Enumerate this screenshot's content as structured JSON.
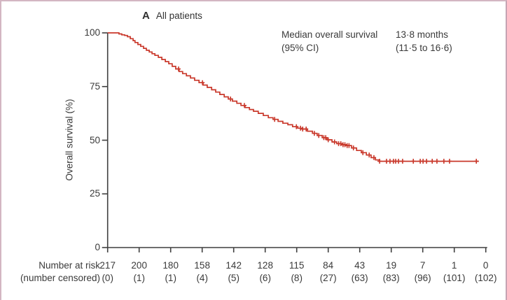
{
  "figure": {
    "panel_label": "A",
    "panel_title": "All patients",
    "annotation": {
      "label_line1": "Median overall survival",
      "label_line2": "(95% CI)",
      "value_line1": "13·8 months",
      "value_line2": "(11·5 to 16·6)"
    },
    "risk_table": {
      "row1_label": "Number at risk",
      "row2_label": "(number censored)",
      "number_at_risk": [
        "217",
        "200",
        "180",
        "158",
        "142",
        "128",
        "115",
        "84",
        "43",
        "19",
        "7",
        "1",
        "0"
      ],
      "number_censored": [
        "(0)",
        "(1)",
        "(1)",
        "(4)",
        "(5)",
        "(6)",
        "(8)",
        "(27)",
        "(63)",
        "(83)",
        "(96)",
        "(101)",
        "(102)"
      ]
    },
    "colors": {
      "curve_red": "#c9382b",
      "axis_gray": "#3f3f3f",
      "text_gray": "#3a3a3a",
      "frame_pink": "#d3b6c2"
    }
  },
  "chart_data": {
    "type": "line",
    "subtype": "kaplan-meier-survival",
    "title": "A All patients",
    "ylabel": "Overall survival (%)",
    "ylim": [
      0,
      100
    ],
    "yticks": [
      0,
      25,
      50,
      75,
      100
    ],
    "x_axis": {
      "tick_count": 13,
      "xlim_units": [
        0,
        12
      ],
      "tick_labels_visible": false
    },
    "legend_position": "none",
    "grid": false,
    "median_overall_survival": "13·8 months",
    "ci_95": "11·5 to 16·6",
    "number_at_risk": [
      217,
      200,
      180,
      158,
      142,
      128,
      115,
      84,
      43,
      19,
      7,
      1,
      0
    ],
    "number_censored": [
      0,
      1,
      1,
      4,
      5,
      6,
      8,
      27,
      63,
      83,
      96,
      101,
      102
    ],
    "curve_points": [
      [
        0,
        100
      ],
      [
        0.32,
        100
      ],
      [
        0.36,
        99.5
      ],
      [
        0.45,
        99.1
      ],
      [
        0.54,
        98.8
      ],
      [
        0.63,
        98.2
      ],
      [
        0.72,
        97.3
      ],
      [
        0.81,
        96.4
      ],
      [
        0.87,
        95.5
      ],
      [
        0.96,
        94.6
      ],
      [
        1.05,
        93.7
      ],
      [
        1.14,
        92.8
      ],
      [
        1.23,
        91.9
      ],
      [
        1.32,
        91.1
      ],
      [
        1.41,
        90.3
      ],
      [
        1.5,
        89.5
      ],
      [
        1.61,
        88.6
      ],
      [
        1.72,
        87.6
      ],
      [
        1.83,
        86.6
      ],
      [
        1.94,
        85.6
      ],
      [
        2.05,
        84.4
      ],
      [
        2.16,
        83.2
      ],
      [
        2.27,
        82
      ],
      [
        2.38,
        81
      ],
      [
        2.5,
        80
      ],
      [
        2.63,
        79
      ],
      [
        2.76,
        77.9
      ],
      [
        2.9,
        76.8
      ],
      [
        3.03,
        75.7
      ],
      [
        3.16,
        74.6
      ],
      [
        3.3,
        73.5
      ],
      [
        3.43,
        72.4
      ],
      [
        3.56,
        71.3
      ],
      [
        3.7,
        70.2
      ],
      [
        3.83,
        69.2
      ],
      [
        3.96,
        68.2
      ],
      [
        4.1,
        67.2
      ],
      [
        4.23,
        66.2
      ],
      [
        4.36,
        65.2
      ],
      [
        4.5,
        64.3
      ],
      [
        4.63,
        63.5
      ],
      [
        4.78,
        62.5
      ],
      [
        4.94,
        61.5
      ],
      [
        5.1,
        60.5
      ],
      [
        5.25,
        59.7
      ],
      [
        5.41,
        58.8
      ],
      [
        5.56,
        57.9
      ],
      [
        5.72,
        57.2
      ],
      [
        5.87,
        56.3
      ],
      [
        6.03,
        55.6
      ],
      [
        6.18,
        55.2
      ],
      [
        6.34,
        54.2
      ],
      [
        6.5,
        53.2
      ],
      [
        6.65,
        52.2
      ],
      [
        6.81,
        51.2
      ],
      [
        6.96,
        50.2
      ],
      [
        7.12,
        49.2
      ],
      [
        7.27,
        48.4
      ],
      [
        7.43,
        47.9
      ],
      [
        7.58,
        47.5
      ],
      [
        7.74,
        46.4
      ],
      [
        7.9,
        45.2
      ],
      [
        8.05,
        44.2
      ],
      [
        8.21,
        43.1
      ],
      [
        8.36,
        41.9
      ],
      [
        8.5,
        40.8
      ],
      [
        8.63,
        40.2
      ],
      [
        11.78,
        40.2
      ]
    ],
    "censor_marks_x": [
      2.25,
      3.01,
      3.9,
      4.34,
      5.3,
      5.99,
      6.12,
      6.19,
      6.3,
      6.56,
      6.7,
      6.86,
      6.92,
      7.0,
      7.2,
      7.33,
      7.4,
      7.47,
      7.53,
      7.6,
      7.66,
      7.8,
      8.1,
      8.3,
      8.45,
      8.63,
      8.85,
      8.96,
      9.07,
      9.14,
      9.23,
      9.36,
      9.7,
      9.92,
      10.01,
      10.12,
      10.3,
      10.45,
      10.67,
      10.85,
      11.7
    ]
  }
}
